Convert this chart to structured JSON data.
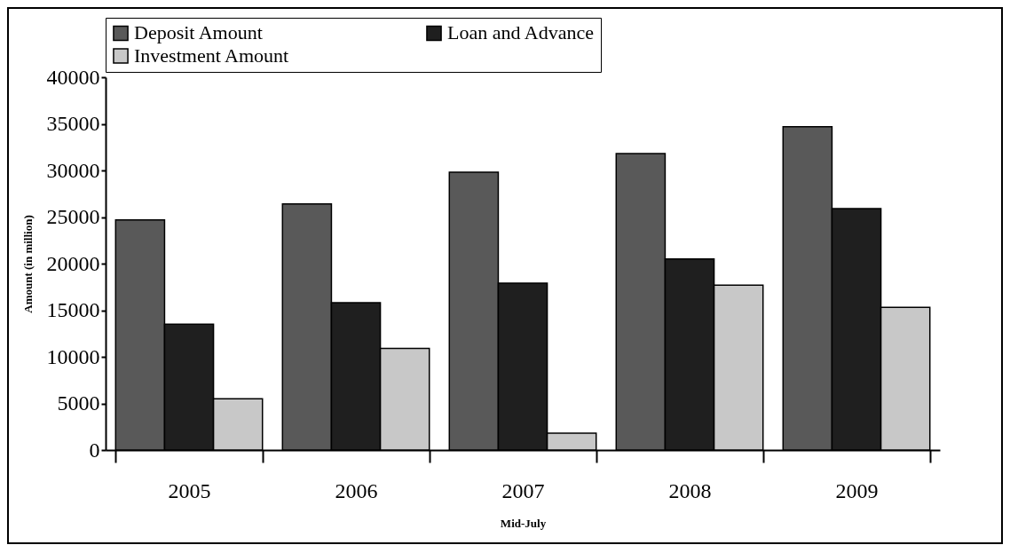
{
  "chart_data": {
    "type": "bar",
    "xlabel": "Mid-July",
    "ylabel": "Amount (in million)",
    "categories": [
      "2005",
      "2006",
      "2007",
      "2008",
      "2009"
    ],
    "series": [
      {
        "name": "Deposit Amount",
        "color": "#595959",
        "values": [
          24700,
          26400,
          29800,
          31800,
          34700
        ]
      },
      {
        "name": "Loan and Advance",
        "color": "#1f1f1f",
        "values": [
          13500,
          15800,
          17900,
          20500,
          25900
        ]
      },
      {
        "name": "Investment Amount",
        "color": "#c8c8c8",
        "values": [
          5500,
          10900,
          1800,
          17700,
          15300
        ]
      }
    ],
    "ylim": [
      0,
      40000
    ],
    "yticks": [
      0,
      5000,
      10000,
      15000,
      20000,
      25000,
      30000,
      35000,
      40000
    ],
    "grid": false,
    "legend": "top"
  }
}
